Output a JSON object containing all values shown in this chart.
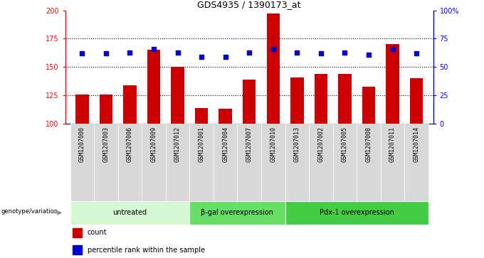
{
  "title": "GDS4935 / 1390173_at",
  "samples": [
    "GSM1207000",
    "GSM1207003",
    "GSM1207006",
    "GSM1207009",
    "GSM1207012",
    "GSM1207001",
    "GSM1207004",
    "GSM1207007",
    "GSM1207010",
    "GSM1207013",
    "GSM1207002",
    "GSM1207005",
    "GSM1207008",
    "GSM1207011",
    "GSM1207014"
  ],
  "counts": [
    126,
    126,
    134,
    165,
    150,
    114,
    113,
    139,
    197,
    141,
    144,
    144,
    133,
    170,
    140
  ],
  "percentiles": [
    62,
    62,
    63,
    66,
    63,
    59,
    59,
    63,
    66,
    63,
    62,
    63,
    61,
    66,
    62
  ],
  "groups": [
    {
      "label": "untreated",
      "start": 0,
      "end": 5,
      "color": "#d4f7d4"
    },
    {
      "label": "β-gal overexpression",
      "start": 5,
      "end": 9,
      "color": "#66dd66"
    },
    {
      "label": "Pdx-1 overexpression",
      "start": 9,
      "end": 15,
      "color": "#44cc44"
    }
  ],
  "bar_color": "#cc0000",
  "dot_color": "#0000cc",
  "ylim_left": [
    100,
    200
  ],
  "ylim_right": [
    0,
    100
  ],
  "yticks_left": [
    100,
    125,
    150,
    175,
    200
  ],
  "yticks_right": [
    0,
    25,
    50,
    75,
    100
  ],
  "yticklabels_right": [
    "0",
    "25",
    "50",
    "75",
    "100%"
  ],
  "grid_values": [
    125,
    150,
    175
  ],
  "legend_count_label": "count",
  "legend_pct_label": "percentile rank within the sample",
  "genotype_label": "genotype/variation",
  "bg_color": "#d8d8d8",
  "bar_width": 0.55
}
